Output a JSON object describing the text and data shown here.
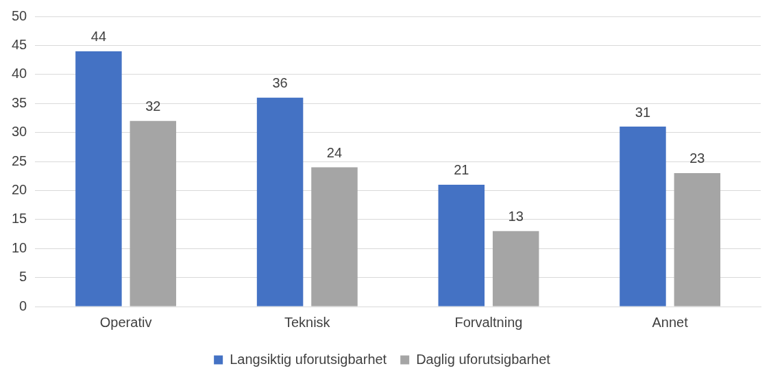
{
  "chart_data": {
    "type": "bar",
    "categories": [
      "Operativ",
      "Teknisk",
      "Forvaltning",
      "Annet"
    ],
    "series": [
      {
        "name": "Langsiktig uforutsigbarhet",
        "color": "#4472c4",
        "values": [
          44,
          36,
          21,
          31
        ]
      },
      {
        "name": "Daglig uforutsigbarhet",
        "color": "#a5a5a5",
        "values": [
          32,
          24,
          13,
          23
        ]
      }
    ],
    "ylim": [
      0,
      50
    ],
    "yticks": [
      0,
      5,
      10,
      15,
      20,
      25,
      30,
      35,
      40,
      45,
      50
    ],
    "grid": "y",
    "legend": "bottom",
    "data_labels": true
  }
}
